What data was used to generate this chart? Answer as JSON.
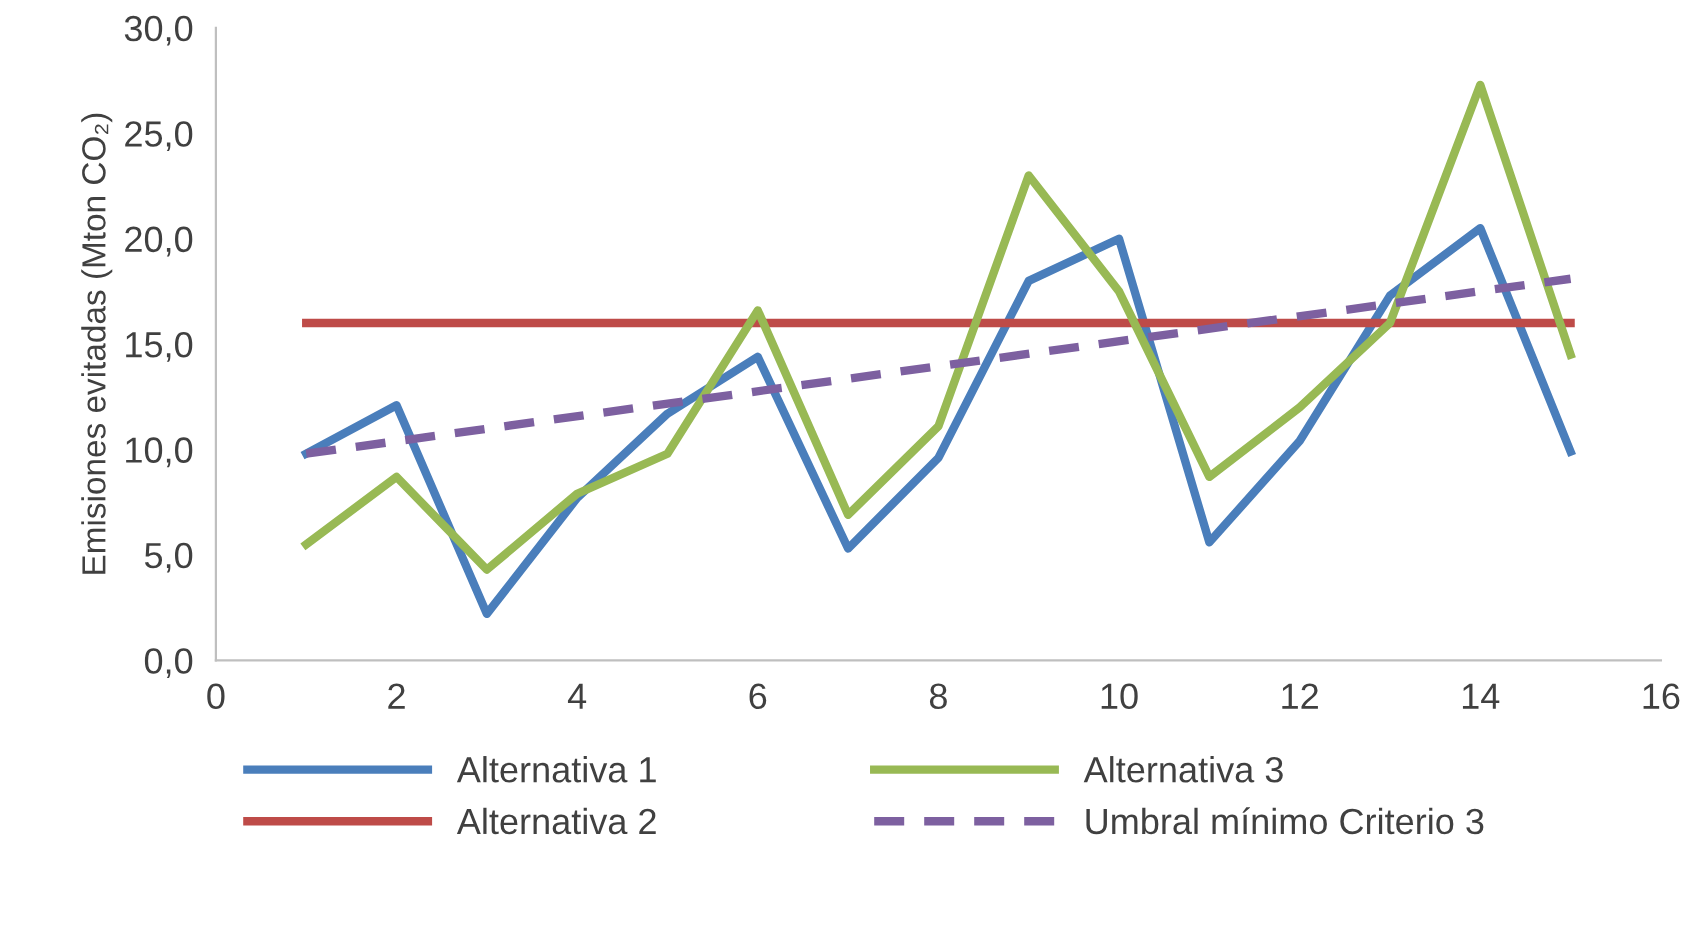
{
  "chart_data": {
    "type": "line",
    "ylabel": "Emisiones evitadas (Mton CO₂)",
    "x": [
      1,
      2,
      3,
      4,
      5,
      6,
      7,
      8,
      9,
      10,
      11,
      12,
      13,
      14,
      15
    ],
    "series": [
      {
        "name": "Alternativa 1",
        "color": "#4a7ebb",
        "values": [
          9.8,
          12.1,
          2.2,
          7.7,
          11.7,
          14.4,
          5.3,
          9.6,
          18.0,
          20.0,
          5.6,
          10.4,
          17.3,
          20.5,
          9.9
        ]
      },
      {
        "name": "Alternativa 2",
        "color": "#be4b48",
        "values": [
          16,
          16,
          16,
          16,
          16,
          16,
          16,
          16,
          16,
          16,
          16,
          16,
          16,
          16,
          16
        ]
      },
      {
        "name": "Alternativa 3",
        "color": "#98b954",
        "values": [
          5.5,
          8.7,
          4.3,
          7.9,
          9.8,
          16.6,
          6.9,
          11.1,
          23.0,
          17.5,
          8.7,
          12.0,
          16.0,
          27.3,
          14.5
        ]
      },
      {
        "name": "Umbral mínimo Criterio 3",
        "color": "#7d60a0",
        "line_style": "dashed",
        "x": [
          1,
          15
        ],
        "values": [
          9.8,
          18.1
        ]
      }
    ],
    "xlim": [
      0,
      16
    ],
    "xticks": [
      0,
      2,
      4,
      6,
      8,
      10,
      12,
      14,
      16
    ],
    "ylim": [
      0,
      30
    ],
    "yticks": [
      {
        "value": 0,
        "label": "0,0"
      },
      {
        "value": 5,
        "label": "5,0"
      },
      {
        "value": 10,
        "label": "10,0"
      },
      {
        "value": 15,
        "label": "15,0"
      },
      {
        "value": 20,
        "label": "20,0"
      },
      {
        "value": 25,
        "label": "25,0"
      },
      {
        "value": 30,
        "label": "30,0"
      }
    ],
    "grid": false,
    "legend": "bottom",
    "marker": "none",
    "line_style": "solid"
  }
}
